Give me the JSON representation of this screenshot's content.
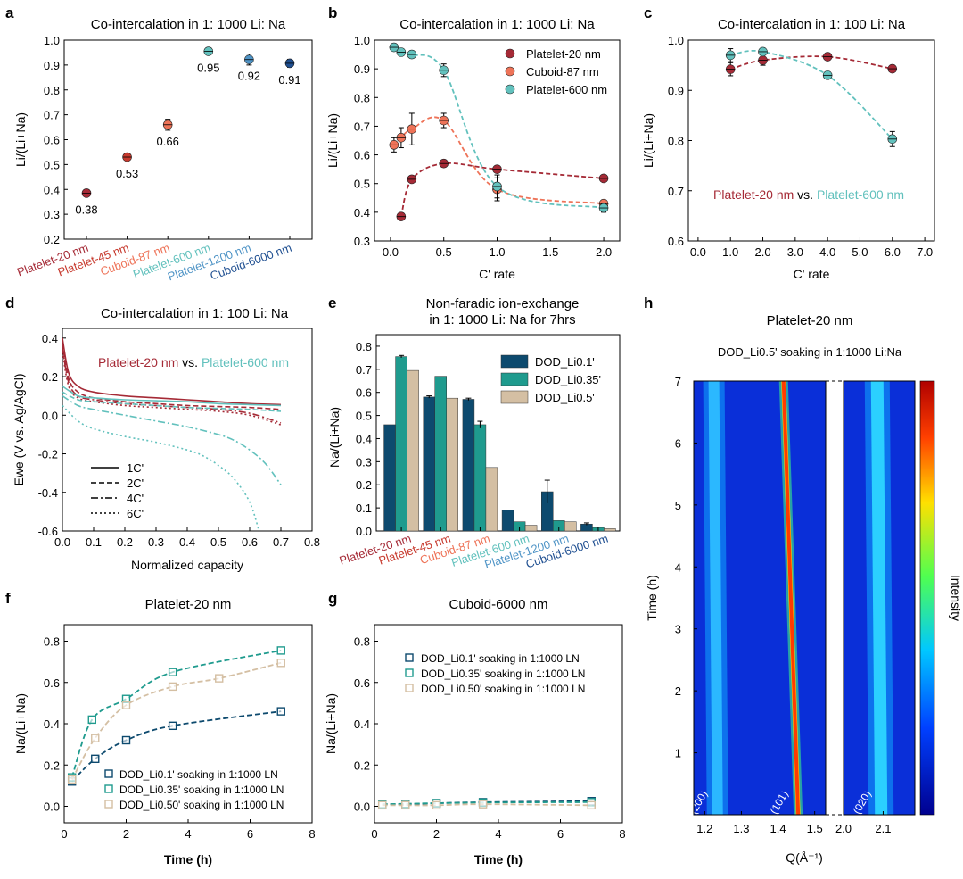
{
  "figure": {
    "panel_letters": [
      "a",
      "b",
      "c",
      "d",
      "e",
      "f",
      "g",
      "h"
    ],
    "colors": {
      "p20": "#a52a36",
      "p45": "#c73a2e",
      "c87": "#ee7358",
      "p600": "#62c1bd",
      "p1200": "#4f94c6",
      "c6000": "#1f4f91",
      "dod01": "#0d4a6e",
      "dod035": "#1f9b8e",
      "dod05": "#d4bfa3"
    }
  },
  "chart_data": [
    {
      "panel": "a",
      "type": "scatter",
      "title": "Co-intercalation in 1: 1000 Li: Na",
      "ylabel": "Li/(Li+Na)",
      "xlabel": "",
      "ylim": [
        0.2,
        1.0
      ],
      "yticks": [
        "0.2",
        "0.3",
        "0.4",
        "0.5",
        "0.6",
        "0.7",
        "0.8",
        "0.9",
        "1.0"
      ],
      "categories": [
        "Platelet-20 nm",
        "Platelet-45 nm",
        "Cuboid-87 nm",
        "Platelet-600 nm",
        "Platelet-1200 nm",
        "Cuboid-6000 nm"
      ],
      "values": [
        0.385,
        0.53,
        0.66,
        0.955,
        0.922,
        0.907
      ],
      "errors": [
        0.008,
        0.008,
        0.022,
        0.012,
        0.022,
        0.016
      ],
      "labels": [
        "0.38",
        "0.53",
        "0.66",
        "0.95",
        "0.92",
        "0.91"
      ]
    },
    {
      "panel": "b",
      "type": "scatter",
      "title": "Co-intercalation in 1: 1000 Li: Na",
      "ylabel": "Li/(Li+Na)",
      "xlabel": "C' rate",
      "xlim": [
        -0.15,
        2.15
      ],
      "ylim": [
        0.3,
        1.0
      ],
      "xticks": [
        "0.0",
        "0.5",
        "1.0",
        "1.5",
        "2.0"
      ],
      "yticks": [
        "0.3",
        "0.4",
        "0.5",
        "0.6",
        "0.7",
        "0.8",
        "0.9",
        "1.0"
      ],
      "series": [
        {
          "name": "Platelet-20 nm",
          "x": [
            0.1,
            0.2,
            0.5,
            1.0,
            2.0
          ],
          "y": [
            0.385,
            0.515,
            0.57,
            0.55,
            0.518
          ],
          "err": [
            0.008,
            0.01,
            0.008,
            0.008,
            0.008
          ]
        },
        {
          "name": "Cuboid-87 nm",
          "x": [
            0.033,
            0.1,
            0.2,
            0.5,
            1.0,
            2.0
          ],
          "y": [
            0.635,
            0.66,
            0.69,
            0.72,
            0.48,
            0.43
          ],
          "err": [
            0.025,
            0.035,
            0.055,
            0.025,
            0.04,
            0.012
          ]
        },
        {
          "name": "Platelet-600 nm",
          "x": [
            0.033,
            0.1,
            0.2,
            0.5,
            1.0,
            2.0
          ],
          "y": [
            0.975,
            0.958,
            0.95,
            0.895,
            0.49,
            0.415
          ],
          "err": [
            0.01,
            0.01,
            0.008,
            0.022,
            0.04,
            0.015
          ]
        }
      ]
    },
    {
      "panel": "c",
      "type": "scatter",
      "title": "Co-intercalation in 1: 100 Li: Na",
      "ylabel": "Li/(Li+Na)",
      "xlabel": "C' rate",
      "xlim": [
        -0.3,
        7.3
      ],
      "ylim": [
        0.6,
        1.0
      ],
      "xticks": [
        "0.0",
        "1.0",
        "2.0",
        "3.0",
        "4.0",
        "5.0",
        "6.0",
        "7.0"
      ],
      "yticks": [
        "0.6",
        "0.7",
        "0.8",
        "0.9",
        "1.0"
      ],
      "annotation": {
        "left": "Platelet-20 nm",
        "mid": " vs. ",
        "right": "Platelet-600 nm"
      },
      "series": [
        {
          "name": "Platelet-20 nm",
          "x": [
            1,
            2,
            4,
            6
          ],
          "y": [
            0.942,
            0.96,
            0.967,
            0.943
          ],
          "err": [
            0.013,
            0.01,
            0.005,
            0.005
          ]
        },
        {
          "name": "Platelet-600 nm",
          "x": [
            1,
            2,
            4,
            6
          ],
          "y": [
            0.97,
            0.977,
            0.93,
            0.803
          ],
          "err": [
            0.013,
            0.006,
            0.006,
            0.015
          ]
        }
      ]
    },
    {
      "panel": "d",
      "type": "line",
      "title": "Co-intercalation in 1: 100 Li: Na",
      "ylabel": "Ewe (V vs. Ag/AgCl)",
      "xlabel": "Normalized capacity",
      "xlim": [
        0.0,
        0.8
      ],
      "ylim": [
        -0.6,
        0.45
      ],
      "xticks": [
        "0.0",
        "0.1",
        "0.2",
        "0.3",
        "0.4",
        "0.5",
        "0.6",
        "0.7",
        "0.8"
      ],
      "yticks": [
        "-0.6",
        "-0.4",
        "-0.2",
        "0.0",
        "0.2",
        "0.4"
      ],
      "annotation": {
        "left": "Platelet-20 nm",
        "mid": " vs. ",
        "right": "Platelet-600 nm"
      },
      "legend": [
        "1C'",
        "2C'",
        "4C'",
        "6C'"
      ],
      "series": [
        {
          "name": "Platelet-20 nm 1C'",
          "x": [
            0,
            0.02,
            0.05,
            0.1,
            0.2,
            0.3,
            0.4,
            0.5,
            0.6,
            0.7
          ],
          "y": [
            0.4,
            0.22,
            0.15,
            0.12,
            0.1,
            0.09,
            0.08,
            0.07,
            0.06,
            0.055
          ]
        },
        {
          "name": "Platelet-20 nm 2C'",
          "x": [
            0,
            0.02,
            0.05,
            0.1,
            0.2,
            0.3,
            0.4,
            0.5,
            0.6,
            0.7
          ],
          "y": [
            0.37,
            0.19,
            0.12,
            0.09,
            0.07,
            0.06,
            0.05,
            0.045,
            0.04,
            0.03
          ]
        },
        {
          "name": "Platelet-20 nm 4C'",
          "x": [
            0,
            0.02,
            0.05,
            0.1,
            0.2,
            0.3,
            0.4,
            0.5,
            0.6,
            0.7
          ],
          "y": [
            0.35,
            0.17,
            0.1,
            0.08,
            0.06,
            0.05,
            0.04,
            0.03,
            0.01,
            -0.04
          ]
        },
        {
          "name": "Platelet-20 nm 6C'",
          "x": [
            0,
            0.02,
            0.05,
            0.1,
            0.2,
            0.3,
            0.4,
            0.5,
            0.6,
            0.7
          ],
          "y": [
            0.33,
            0.15,
            0.09,
            0.07,
            0.05,
            0.04,
            0.03,
            0.02,
            0.0,
            -0.05
          ]
        },
        {
          "name": "Platelet-600 nm 1C'",
          "x": [
            0,
            0.05,
            0.1,
            0.2,
            0.3,
            0.4,
            0.5,
            0.6,
            0.7
          ],
          "y": [
            0.15,
            0.1,
            0.09,
            0.08,
            0.075,
            0.07,
            0.06,
            0.055,
            0.05
          ]
        },
        {
          "name": "Platelet-600 nm 2C'",
          "x": [
            0,
            0.05,
            0.1,
            0.2,
            0.3,
            0.4,
            0.5,
            0.6,
            0.7
          ],
          "y": [
            0.12,
            0.08,
            0.07,
            0.06,
            0.05,
            0.04,
            0.035,
            0.03,
            0.02
          ]
        },
        {
          "name": "Platelet-600 nm 4C'",
          "x": [
            0,
            0.05,
            0.1,
            0.2,
            0.3,
            0.4,
            0.5,
            0.55,
            0.6,
            0.65,
            0.7
          ],
          "y": [
            0.1,
            0.05,
            0.03,
            0.0,
            -0.03,
            -0.06,
            -0.1,
            -0.13,
            -0.18,
            -0.25,
            -0.36
          ]
        },
        {
          "name": "Platelet-600 nm 6C'",
          "x": [
            0,
            0.05,
            0.1,
            0.2,
            0.3,
            0.4,
            0.45,
            0.5,
            0.55,
            0.6,
            0.63
          ],
          "y": [
            0.05,
            -0.03,
            -0.07,
            -0.11,
            -0.14,
            -0.18,
            -0.21,
            -0.26,
            -0.33,
            -0.45,
            -0.6
          ]
        }
      ]
    },
    {
      "panel": "e",
      "type": "bar",
      "title": "Non-faradic ion-exchange",
      "subtitle": "in 1: 1000 Li: Na for 7hrs",
      "ylabel": "Na/(Li+Na)",
      "xlabel": "",
      "ylim": [
        0.0,
        0.85
      ],
      "yticks": [
        "0.0",
        "0.1",
        "0.2",
        "0.3",
        "0.4",
        "0.5",
        "0.6",
        "0.7",
        "0.8"
      ],
      "categories": [
        "Platelet-20 nm",
        "Platelet-45 nm",
        "Cuboid-87 nm",
        "Platelet-600 nm",
        "Platelet-1200 nm",
        "Cuboid-6000 nm"
      ],
      "series": [
        {
          "name": "DOD_Li0.1'",
          "values": [
            0.46,
            0.58,
            0.57,
            0.09,
            0.17,
            0.03
          ],
          "err": [
            0.0,
            0.005,
            0.005,
            0.0,
            0.05,
            0.005
          ]
        },
        {
          "name": "DOD_Li0.35'",
          "values": [
            0.755,
            0.67,
            0.46,
            0.04,
            0.045,
            0.015
          ],
          "err": [
            0.005,
            0.0,
            0.015,
            0.0,
            0.0,
            0.0
          ]
        },
        {
          "name": "DOD_Li0.5'",
          "values": [
            0.695,
            0.575,
            0.275,
            0.025,
            0.04,
            0.01
          ],
          "err": [
            0.0,
            0.0,
            0.0,
            0.0,
            0.0,
            0.0
          ]
        }
      ]
    },
    {
      "panel": "f",
      "type": "scatter",
      "title": "Platelet-20 nm",
      "ylabel": "Na/(Li+Na)",
      "xlabel": "Time (h)",
      "xlim": [
        0,
        8
      ],
      "ylim": [
        -0.08,
        0.88
      ],
      "xticks": [
        "0",
        "2",
        "4",
        "6",
        "8"
      ],
      "yticks": [
        "0.0",
        "0.2",
        "0.4",
        "0.6",
        "0.8"
      ],
      "series": [
        {
          "name": "DOD_Li0.1' soaking in 1:1000 LN",
          "x": [
            0.25,
            1,
            2,
            3.5,
            7
          ],
          "y": [
            0.12,
            0.23,
            0.32,
            0.39,
            0.46
          ]
        },
        {
          "name": "DOD_Li0.35' soaking in 1:1000 LN",
          "x": [
            0.25,
            0.9,
            2,
            3.5,
            7
          ],
          "y": [
            0.14,
            0.42,
            0.52,
            0.65,
            0.755
          ]
        },
        {
          "name": "DOD_Li0.50' soaking in 1:1000 LN",
          "x": [
            0.25,
            1,
            2,
            3.5,
            5,
            7
          ],
          "y": [
            0.13,
            0.33,
            0.49,
            0.58,
            0.62,
            0.695
          ]
        }
      ]
    },
    {
      "panel": "g",
      "type": "scatter",
      "title": "Cuboid-6000 nm",
      "ylabel": "Na/(Li+Na)",
      "xlabel": "Time (h)",
      "xlim": [
        0,
        8
      ],
      "ylim": [
        -0.08,
        0.88
      ],
      "xticks": [
        "0",
        "2",
        "4",
        "6",
        "8"
      ],
      "yticks": [
        "0.0",
        "0.2",
        "0.4",
        "0.6",
        "0.8"
      ],
      "series": [
        {
          "name": "DOD_Li0.1' soaking in 1:1000 LN",
          "x": [
            0.25,
            1,
            2,
            3.5,
            7
          ],
          "y": [
            0.01,
            0.01,
            0.015,
            0.02,
            0.025
          ]
        },
        {
          "name": "DOD_Li0.35' soaking in 1:1000 LN",
          "x": [
            0.25,
            1,
            2,
            3.5,
            7
          ],
          "y": [
            0.01,
            0.012,
            0.015,
            0.018,
            0.02
          ]
        },
        {
          "name": "DOD_Li0.50' soaking in 1:1000 LN",
          "x": [
            0.25,
            1,
            2,
            3.5,
            7
          ],
          "y": [
            0.005,
            0.005,
            0.005,
            0.01,
            0.005
          ]
        }
      ]
    },
    {
      "panel": "h",
      "type": "heatmap",
      "title": "Platelet-20 nm",
      "subtitle": "DOD_Li0.5' soaking in 1:1000 Li:Na",
      "ylabel": "Time (h)",
      "xlabel": "Q(Å⁻¹)",
      "colorbar_label": "Intensity",
      "ylim": [
        0,
        7
      ],
      "yticks": [
        "1",
        "2",
        "3",
        "4",
        "5",
        "6",
        "7"
      ],
      "xlim_left": [
        1.17,
        1.53
      ],
      "xlim_right": [
        2.0,
        2.18
      ],
      "xticks_left": [
        "1.2",
        "1.3",
        "1.4",
        "1.5"
      ],
      "xticks_right": [
        "2.0",
        "2.1"
      ],
      "peaks": [
        {
          "label": "(200)",
          "q_start": 1.235,
          "q_end": 1.225
        },
        {
          "label": "(101)",
          "q_start": 1.455,
          "q_end": 1.415
        },
        {
          "label": "(020)",
          "q_start": 2.095,
          "q_end": 2.085
        }
      ]
    }
  ]
}
